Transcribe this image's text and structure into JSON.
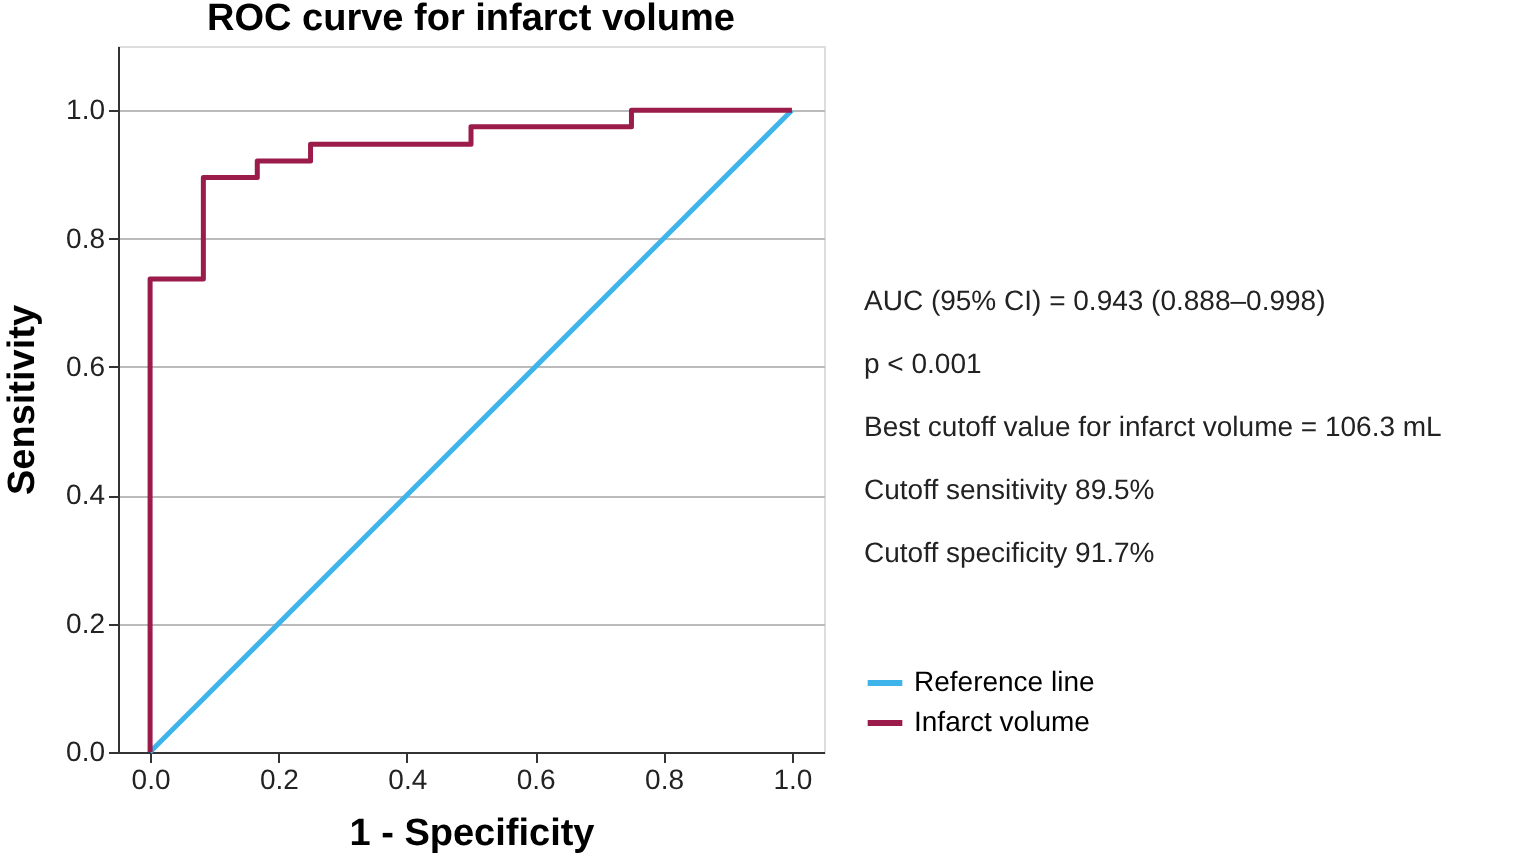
{
  "chart_data": {
    "type": "line",
    "title": "ROC curve for infarct volume",
    "xlabel": "1 - Specificity",
    "ylabel": "Sensitivity",
    "xlim": [
      -0.05,
      1.05
    ],
    "ylim": [
      0,
      1.1
    ],
    "xticks": [
      {
        "value": 0,
        "label": "0.0"
      },
      0.2,
      0.4,
      0.6,
      0.8,
      {
        "value": 1,
        "label": "1.0"
      }
    ],
    "yticks": [
      {
        "value": 0,
        "label": "0.0"
      },
      0.2,
      0.4,
      0.6,
      0.8,
      {
        "value": 1,
        "label": "1.0"
      }
    ],
    "grid": "y",
    "legend": "right",
    "marker": "none",
    "line_style": "solid",
    "series": [
      {
        "name": "Reference line",
        "color": "#3fb4ea",
        "x": [
          0,
          1
        ],
        "values": [
          0,
          1
        ]
      },
      {
        "name": "Infarct volume",
        "color": "#9b1b4a",
        "x": [
          0,
          0,
          0.083,
          0.083,
          0.167,
          0.167,
          0.25,
          0.25,
          0.5,
          0.5,
          0.75,
          0.75,
          1.0
        ],
        "values": [
          0,
          0.737,
          0.737,
          0.895,
          0.895,
          0.921,
          0.921,
          0.947,
          0.947,
          0.974,
          0.974,
          1.0,
          1.0
        ]
      }
    ],
    "annotations": [
      "AUC (95% CI) = 0.943 (0.888–0.998)",
      "p < 0.001",
      "Best cutoff value for infarct volume = 106.3 mL",
      "Cutoff sensitivity 89.5%",
      "Cutoff specificity 91.7%"
    ]
  }
}
